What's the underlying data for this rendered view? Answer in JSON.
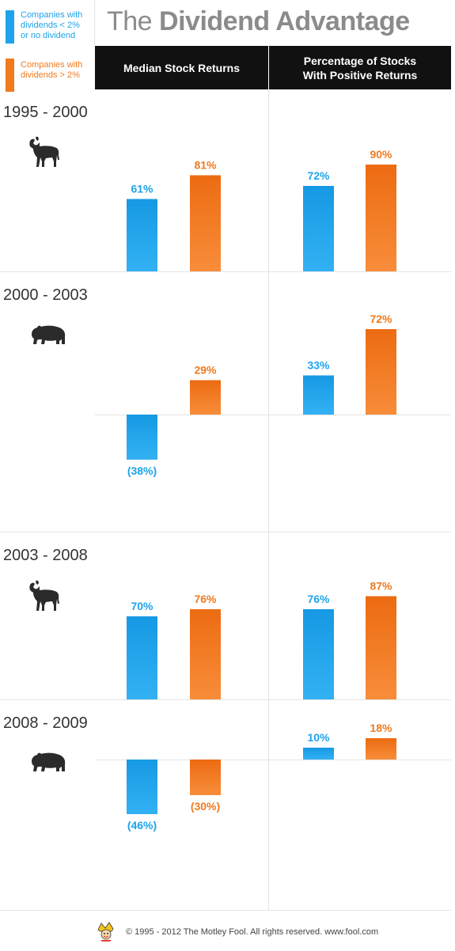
{
  "colors": {
    "blue": "#1ea3ea",
    "orange": "#f07a1e",
    "text": "#333333",
    "title": "#8b8b8b"
  },
  "legend": {
    "low": "Companies with dividends < 2% or no dividend",
    "low_lines": [
      "Companies with",
      "dividends < 2%",
      "or no dividend"
    ],
    "high": "Companies with dividends > 2%",
    "high_lines": [
      "Companies with",
      "dividends > 2%"
    ]
  },
  "title": {
    "prefix": "The",
    "main": "Dividend Advantage"
  },
  "columns": [
    "Median Stock Returns",
    "Percentage of Stocks With Positive Returns"
  ],
  "periods": [
    {
      "label": "1995 - 2000",
      "market": "bull-icon"
    },
    {
      "label": "2000 - 2003",
      "market": "bear-icon"
    },
    {
      "label": "2003 - 2008",
      "market": "bull-icon"
    },
    {
      "label": "2008 - 2009",
      "market": "bear-icon"
    }
  ],
  "footer": "© 1995 - 2012 The Motley Fool. All rights reserved. www.fool.com",
  "chart_data": [
    {
      "type": "bar",
      "title": "Median Stock Returns",
      "categories": [
        "1995 - 2000",
        "2000 - 2003",
        "2003 - 2008",
        "2008 - 2009"
      ],
      "series": [
        {
          "name": "Companies with dividends < 2% or no dividend",
          "values": [
            61,
            -38,
            70,
            -46
          ],
          "labels": [
            "61%",
            "(38%)",
            "70%",
            "(46%)"
          ]
        },
        {
          "name": "Companies with dividends > 2%",
          "values": [
            81,
            29,
            76,
            -30
          ],
          "labels": [
            "81%",
            "29%",
            "76%",
            "(30%)"
          ]
        }
      ]
    },
    {
      "type": "bar",
      "title": "Percentage of Stocks With Positive Returns",
      "categories": [
        "1995 - 2000",
        "2000 - 2003",
        "2003 - 2008",
        "2008 - 2009"
      ],
      "series": [
        {
          "name": "Companies with dividends < 2% or no dividend",
          "values": [
            72,
            33,
            76,
            10
          ],
          "labels": [
            "72%",
            "33%",
            "76%",
            "10%"
          ]
        },
        {
          "name": "Companies with dividends > 2%",
          "values": [
            90,
            72,
            87,
            18
          ],
          "labels": [
            "90%",
            "72%",
            "87%",
            "18%"
          ]
        }
      ]
    }
  ]
}
